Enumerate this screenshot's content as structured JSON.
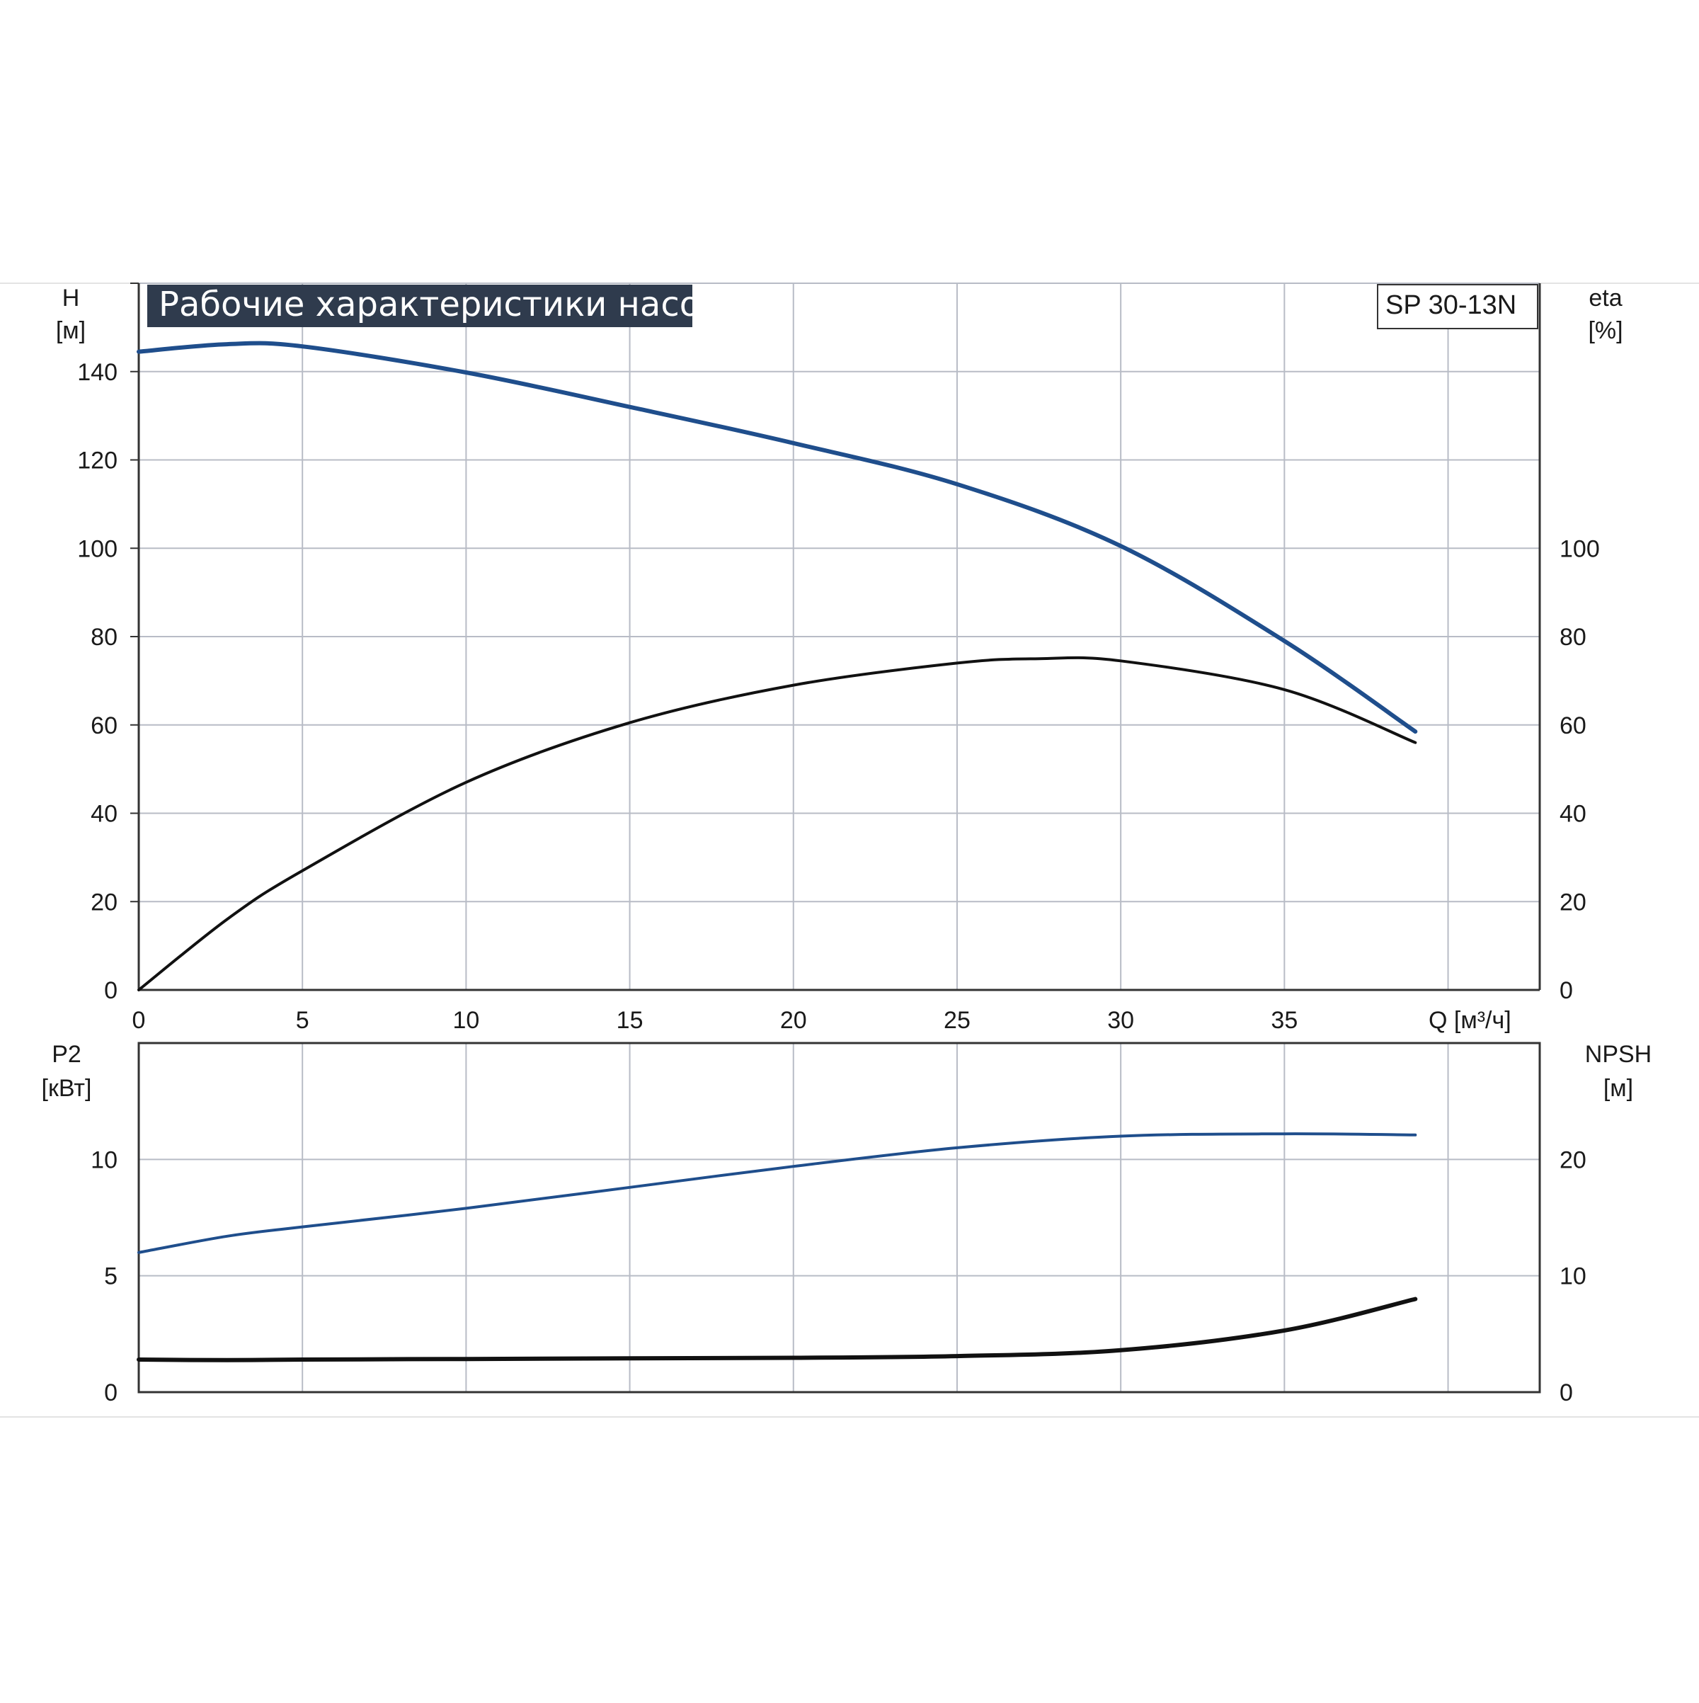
{
  "title": "Рабочие характеристики насоса",
  "model": "SP 30-13N",
  "colors": {
    "blue_curve": "#1f4e8c",
    "black_curve": "#111111",
    "grid": "#b8bcc6",
    "axis": "#333333",
    "title_bg": "#2f3b4d"
  },
  "chart_data": [
    {
      "type": "line",
      "panel": "top",
      "x_label": "Q [м³/ч]",
      "y_left_label": [
        "H",
        "[м]"
      ],
      "y_right_label": [
        "eta",
        "[%]"
      ],
      "x_ticks": [
        "0",
        "5",
        "10",
        "15",
        "20",
        "25",
        "30",
        "35"
      ],
      "y_left_ticks": [
        "0",
        "20",
        "40",
        "60",
        "80",
        "100",
        "120",
        "140"
      ],
      "y_right_ticks": [
        "0",
        "20",
        "40",
        "60",
        "80",
        "100"
      ],
      "xlim": [
        0,
        42.8
      ],
      "ylim_left": [
        0,
        160
      ],
      "ylim_right": [
        0,
        160
      ],
      "grid": true,
      "series": [
        {
          "axis": "left",
          "color": "blue",
          "x": [
            0,
            2.7,
            5,
            10,
            15,
            20,
            25,
            30,
            35,
            39
          ],
          "y": [
            144.5,
            146.2,
            145.7,
            139.8,
            132,
            123.8,
            114.5,
            100.5,
            79,
            58.5
          ]
        },
        {
          "axis": "right",
          "color": "black",
          "x": [
            0,
            2.7,
            5,
            10,
            15,
            20,
            25,
            27.5,
            30,
            35,
            39
          ],
          "y": [
            0,
            16,
            27,
            47,
            60.5,
            69,
            74,
            75,
            74.5,
            68,
            56
          ]
        }
      ]
    },
    {
      "type": "line",
      "panel": "bottom",
      "y_left_label": [
        "P2",
        "[кВт]"
      ],
      "y_right_label": [
        "NPSH",
        "[м]"
      ],
      "y_left_ticks": [
        "0",
        "5",
        "10"
      ],
      "y_right_ticks": [
        "0",
        "10",
        "20"
      ],
      "xlim": [
        0,
        42.8
      ],
      "ylim_left": [
        0,
        15
      ],
      "ylim_right": [
        0,
        30
      ],
      "grid": true,
      "series": [
        {
          "axis": "left",
          "color": "blue",
          "x": [
            0,
            2.7,
            5,
            10,
            15,
            20,
            25,
            30,
            35,
            39
          ],
          "y": [
            6,
            6.7,
            7.1,
            7.9,
            8.8,
            9.7,
            10.5,
            11,
            11.1,
            11.05
          ]
        },
        {
          "axis": "right",
          "color": "black",
          "x": [
            0,
            2.7,
            5,
            10,
            15,
            20,
            25,
            30,
            35,
            39
          ],
          "y": [
            2.8,
            2.75,
            2.8,
            2.85,
            2.9,
            2.95,
            3.1,
            3.6,
            5.3,
            8
          ]
        }
      ]
    }
  ]
}
